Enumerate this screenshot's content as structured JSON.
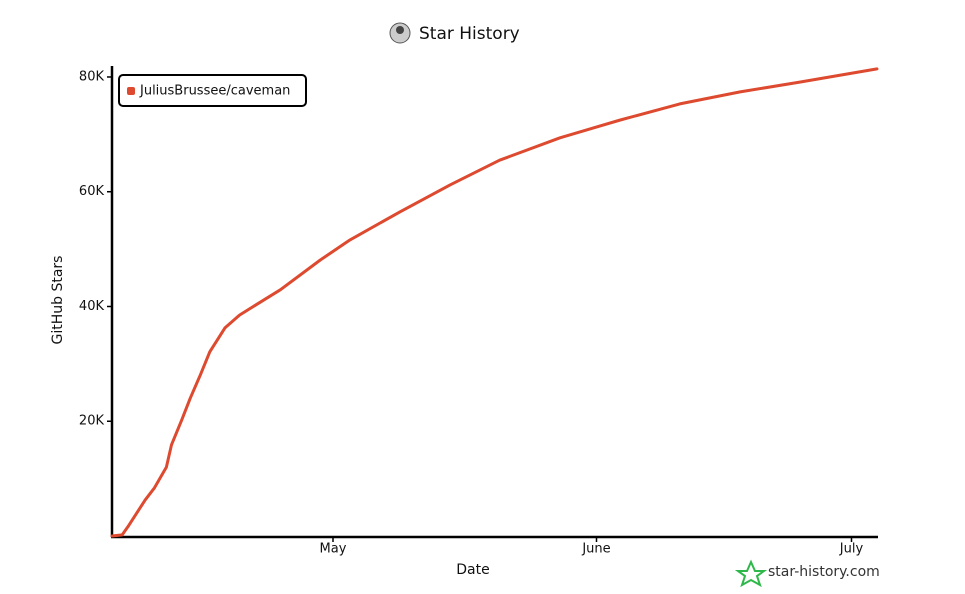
{
  "chart_data": {
    "type": "line",
    "title": "Star History",
    "x_label": "Date",
    "y_label": "GitHub Stars",
    "x": [
      0,
      1.2,
      2,
      3.9,
      5,
      6.4,
      7,
      8.2,
      9.2,
      10.4,
      11.5,
      13.3,
      15,
      16.5,
      19.8,
      24.5,
      28,
      33.9,
      39.8,
      45.6,
      52.7,
      59.8,
      66.8,
      73.9,
      80.9,
      90
    ],
    "series": [
      {
        "name": "JuliusBrussee/caveman",
        "color": "#dd4a2f",
        "values": [
          0,
          200,
          1900,
          6300,
          8400,
          12000,
          15900,
          20200,
          24000,
          28100,
          32100,
          36300,
          38500,
          39900,
          42900,
          48100,
          51600,
          56500,
          61200,
          65500,
          69400,
          72500,
          75300,
          77400,
          79100,
          81400
        ]
      }
    ],
    "xlim": [
      0,
      90
    ],
    "xticks": [
      {
        "value": 26,
        "label": "May"
      },
      {
        "value": 57,
        "label": "June"
      },
      {
        "value": 87,
        "label": "July"
      }
    ],
    "ylim": [
      0,
      82000
    ],
    "yticks": [
      {
        "value": 20000,
        "label": "20K"
      },
      {
        "value": 40000,
        "label": "40K"
      },
      {
        "value": 60000,
        "label": "60K"
      },
      {
        "value": 80000,
        "label": "80K"
      }
    ],
    "legend": "top-left",
    "watermark": "star-history.com"
  }
}
